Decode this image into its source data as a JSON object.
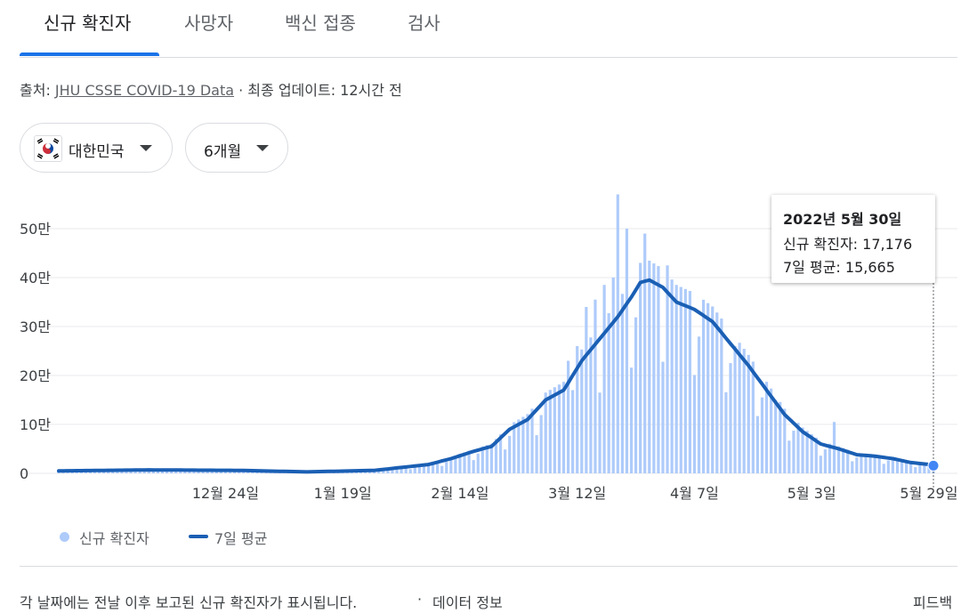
{
  "tabs": [
    "신규 확진자",
    "사망자",
    "백신 접종",
    "검사"
  ],
  "source": {
    "prefix": "출처: ",
    "link": "JHU CSSE COVID-19 Data",
    "suffix": " · 최종 업데이트: 12시간 전"
  },
  "filters": {
    "country": "대한민국",
    "period": "6개월"
  },
  "tooltip": {
    "date": "2022년 5월 30일",
    "new_cases": "신규 확진자: 17,176",
    "avg": "7일 평균: 15,665"
  },
  "legend": {
    "bars": "신규 확진자",
    "line": "7일 평균"
  },
  "footer": {
    "note": "각 날짜에는 전날 이후 보고된 신규 확진자가 표시됩니다.",
    "sep": "·",
    "link": "데이터 정보",
    "feedback": "피드백"
  },
  "colors": {
    "bar": "#aecbfa",
    "line": "#1a5fb4",
    "active_tab": "#1a73e8"
  },
  "chart_data": {
    "type": "bar",
    "y_ticks": [
      "0",
      "10만",
      "20만",
      "30만",
      "40만",
      "50만"
    ],
    "y_tick_values": [
      0,
      100000,
      200000,
      300000,
      400000,
      500000
    ],
    "x_ticks": [
      {
        "label": "12월 24일",
        "day": 37
      },
      {
        "label": "1월 19일",
        "day": 63
      },
      {
        "label": "2월 14일",
        "day": 89
      },
      {
        "label": "3월 12일",
        "day": 115
      },
      {
        "label": "4월 7일",
        "day": 141
      },
      {
        "label": "5월 3일",
        "day": 167
      },
      {
        "label": "5월 29일",
        "day": 193
      }
    ],
    "ylim": [
      0,
      580000
    ],
    "anchor_dates": [
      [
        0,
        5000
      ],
      [
        20,
        7000
      ],
      [
        40,
        6000
      ],
      [
        55,
        3000
      ],
      [
        70,
        6000
      ],
      [
        82,
        18000
      ],
      [
        87,
        30000
      ],
      [
        92,
        45000
      ],
      [
        96,
        55000
      ],
      [
        100,
        90000
      ],
      [
        104,
        110000
      ],
      [
        108,
        150000
      ],
      [
        112,
        170000
      ],
      [
        116,
        230000
      ],
      [
        120,
        275000
      ],
      [
        124,
        320000
      ],
      [
        127,
        360000
      ],
      [
        129,
        390000
      ],
      [
        131,
        395000
      ],
      [
        134,
        380000
      ],
      [
        137,
        350000
      ],
      [
        141,
        335000
      ],
      [
        145,
        310000
      ],
      [
        149,
        265000
      ],
      [
        153,
        220000
      ],
      [
        157,
        170000
      ],
      [
        161,
        120000
      ],
      [
        165,
        85000
      ],
      [
        169,
        60000
      ],
      [
        173,
        50000
      ],
      [
        177,
        38000
      ],
      [
        181,
        35000
      ],
      [
        185,
        30000
      ],
      [
        189,
        22000
      ],
      [
        194,
        17176
      ]
    ],
    "spikes": [
      [
        113,
        230000
      ],
      [
        115,
        260000
      ],
      [
        117,
        340000
      ],
      [
        119,
        355000
      ],
      [
        121,
        385000
      ],
      [
        123,
        400000
      ],
      [
        124,
        570000
      ],
      [
        126,
        500000
      ],
      [
        129,
        430000
      ],
      [
        130,
        490000
      ],
      [
        135,
        425000
      ],
      [
        150,
        260000
      ],
      [
        159,
        150000
      ],
      [
        172,
        105000
      ]
    ],
    "last_point": {
      "date": "2022년 5월 30일",
      "new_cases": 17176,
      "avg": 15665
    }
  }
}
